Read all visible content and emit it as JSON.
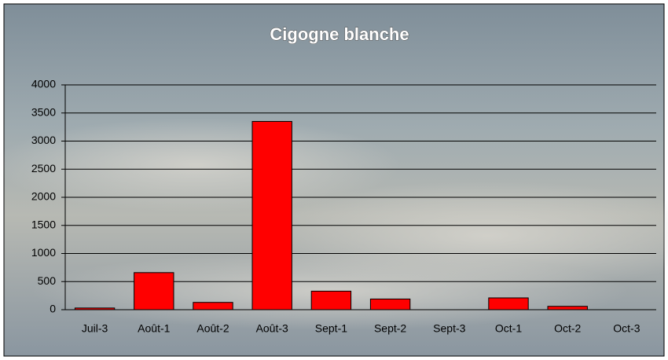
{
  "chart_data": {
    "type": "bar",
    "title": "Cigogne blanche",
    "categories": [
      "Juil-3",
      "Août-1",
      "Août-2",
      "Août-3",
      "Sept-1",
      "Sept-2",
      "Sept-3",
      "Oct-1",
      "Oct-2",
      "Oct-3"
    ],
    "values": [
      30,
      660,
      130,
      3350,
      330,
      190,
      0,
      210,
      60,
      0
    ],
    "color": "#ff0000",
    "ylim": [
      0,
      4000
    ],
    "yticks": [
      0,
      500,
      1000,
      1500,
      2000,
      2500,
      3000,
      3500,
      4000
    ],
    "grid": true
  }
}
